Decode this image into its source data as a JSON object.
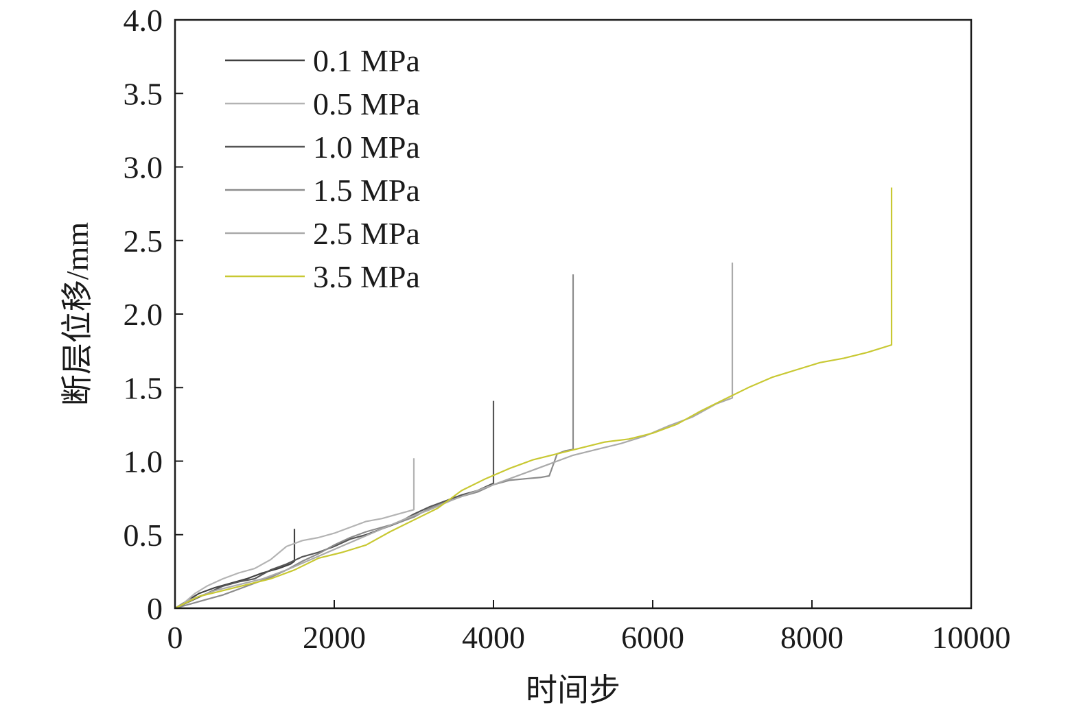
{
  "chart_data": {
    "type": "line",
    "xlabel": "时间步",
    "ylabel": "断层位移/mm",
    "xlim": [
      0,
      10000
    ],
    "ylim": [
      0,
      4.0
    ],
    "x_ticks": [
      "0",
      "2000",
      "4000",
      "6000",
      "8000",
      "10000"
    ],
    "y_ticks": [
      "0",
      "0.5",
      "1.0",
      "1.5",
      "2.0",
      "2.5",
      "3.0",
      "3.5",
      "4.0"
    ],
    "grid": false,
    "legend_position": "top-left",
    "series": [
      {
        "name": "0.1 MPa",
        "color": "#404040",
        "x": [
          0,
          150,
          300,
          500,
          700,
          900,
          1100,
          1300,
          1450,
          1500,
          1500
        ],
        "y": [
          0,
          0.05,
          0.1,
          0.14,
          0.17,
          0.2,
          0.24,
          0.27,
          0.3,
          0.32,
          0.54
        ]
      },
      {
        "name": "0.5 MPa",
        "color": "#b3b3b3",
        "x": [
          0,
          100,
          250,
          400,
          600,
          800,
          1000,
          1200,
          1400,
          1600,
          1800,
          2000,
          2200,
          2400,
          2600,
          2800,
          3000,
          3000
        ],
        "y": [
          0,
          0.03,
          0.1,
          0.15,
          0.2,
          0.24,
          0.27,
          0.33,
          0.42,
          0.46,
          0.48,
          0.51,
          0.55,
          0.59,
          0.61,
          0.64,
          0.67,
          1.02
        ]
      },
      {
        "name": "1.0 MPa",
        "color": "#555555",
        "x": [
          0,
          200,
          400,
          600,
          800,
          1000,
          1200,
          1400,
          1600,
          1800,
          2000,
          2200,
          2400,
          2600,
          2800,
          3000,
          3200,
          3400,
          3600,
          3800,
          4000,
          4000
        ],
        "y": [
          0,
          0.05,
          0.1,
          0.15,
          0.18,
          0.2,
          0.26,
          0.3,
          0.35,
          0.38,
          0.42,
          0.47,
          0.5,
          0.54,
          0.58,
          0.64,
          0.69,
          0.73,
          0.77,
          0.8,
          0.85,
          1.41
        ]
      },
      {
        "name": "1.5 MPa",
        "color": "#8c8c8c",
        "x": [
          0,
          200,
          400,
          600,
          800,
          1000,
          1200,
          1400,
          1600,
          1800,
          2000,
          2200,
          2400,
          2600,
          2800,
          3000,
          3200,
          3400,
          3600,
          3800,
          4000,
          4200,
          4400,
          4600,
          4700,
          4800,
          4900,
          5000,
          5000
        ],
        "y": [
          0,
          0.03,
          0.06,
          0.09,
          0.13,
          0.17,
          0.21,
          0.26,
          0.32,
          0.37,
          0.43,
          0.48,
          0.52,
          0.55,
          0.58,
          0.62,
          0.68,
          0.72,
          0.76,
          0.79,
          0.84,
          0.87,
          0.88,
          0.89,
          0.9,
          1.05,
          1.07,
          1.08,
          2.27
        ]
      },
      {
        "name": "2.5 MPa",
        "color": "#aaaaaa",
        "x": [
          0,
          200,
          500,
          800,
          1100,
          1400,
          1700,
          2000,
          2300,
          2600,
          2900,
          3200,
          3500,
          3800,
          4100,
          4400,
          4700,
          5000,
          5300,
          5600,
          5900,
          6200,
          6500,
          6800,
          7000,
          7000
        ],
        "y": [
          0,
          0.06,
          0.12,
          0.16,
          0.2,
          0.26,
          0.33,
          0.4,
          0.47,
          0.54,
          0.61,
          0.67,
          0.74,
          0.8,
          0.86,
          0.92,
          0.98,
          1.04,
          1.08,
          1.12,
          1.17,
          1.24,
          1.3,
          1.39,
          1.43,
          2.35
        ]
      },
      {
        "name": "3.5 MPa",
        "color": "#c8c832",
        "x": [
          0,
          300,
          600,
          900,
          1200,
          1500,
          1800,
          2100,
          2400,
          2700,
          3000,
          3300,
          3600,
          3900,
          4200,
          4500,
          4800,
          5100,
          5400,
          5700,
          6000,
          6300,
          6600,
          6900,
          7200,
          7500,
          7800,
          8100,
          8400,
          8700,
          9000,
          9000
        ],
        "y": [
          0,
          0.08,
          0.12,
          0.16,
          0.2,
          0.26,
          0.34,
          0.38,
          0.43,
          0.52,
          0.6,
          0.68,
          0.8,
          0.88,
          0.95,
          1.01,
          1.05,
          1.09,
          1.13,
          1.15,
          1.19,
          1.25,
          1.34,
          1.42,
          1.5,
          1.57,
          1.62,
          1.67,
          1.7,
          1.74,
          1.79,
          2.86
        ]
      }
    ]
  }
}
